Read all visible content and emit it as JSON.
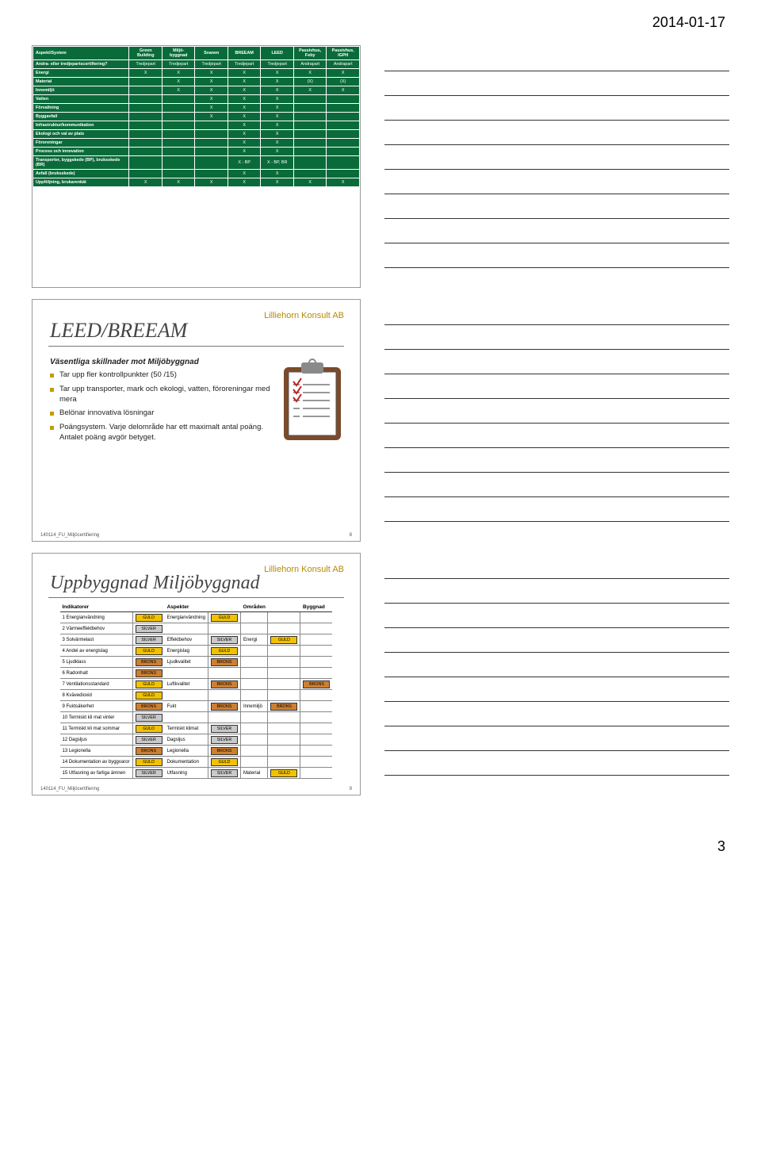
{
  "header_date": "2014-01-17",
  "footer_page": "3",
  "brand": "Lilliehorn Konsult AB",
  "slide_footer_left": "140114_FU_Miljöcertifiering",
  "slide2_num": "8",
  "slide3_num": "9",
  "green_table": {
    "columns": [
      "Aspekt/System",
      "Green Building",
      "Miljö-byggnad",
      "Svanen",
      "BREEAM",
      "LEED",
      "Passivhus, Feby",
      "Passivhus, IGPH"
    ],
    "rows": [
      [
        "Andra- eller tredjepartscertifiering?",
        "Tredjepart",
        "Tredjepart",
        "Tredjepart",
        "Tredjepart",
        "Tredjepart",
        "Andrapart",
        "Andrapart"
      ],
      [
        "Energi",
        "X",
        "X",
        "X",
        "X",
        "X",
        "X",
        "X"
      ],
      [
        "Material",
        "",
        "X",
        "X",
        "X",
        "X",
        "(X)",
        "(X)"
      ],
      [
        "Innemiljö",
        "",
        "X",
        "X",
        "X",
        "X",
        "X",
        "X"
      ],
      [
        "Vatten",
        "",
        "",
        "X",
        "X",
        "X",
        "",
        ""
      ],
      [
        "Förvaltning",
        "",
        "",
        "X",
        "X",
        "X",
        "",
        ""
      ],
      [
        "Byggavfall",
        "",
        "",
        "X",
        "X",
        "X",
        "",
        ""
      ],
      [
        "Infrastruktur/kommunikation",
        "",
        "",
        "",
        "X",
        "X",
        "",
        ""
      ],
      [
        "Ekologi och val av plats",
        "",
        "",
        "",
        "X",
        "X",
        "",
        ""
      ],
      [
        "Föroreningar",
        "",
        "",
        "",
        "X",
        "X",
        "",
        ""
      ],
      [
        "Process och innovation",
        "",
        "",
        "",
        "X",
        "X",
        "",
        ""
      ],
      [
        "Transporter, byggskede (BP), bruksskede (BR)",
        "",
        "",
        "",
        "X - BP",
        "X - BP, BR",
        "",
        ""
      ],
      [
        "Avfall (bruksskede)",
        "",
        "",
        "",
        "X",
        "X",
        "",
        ""
      ],
      [
        "Uppföljning, brukarenkät",
        "X",
        "X",
        "X",
        "X",
        "X",
        "X",
        "X"
      ]
    ]
  },
  "slide2": {
    "title": "LEED/BREEAM",
    "subtitle": "Väsentliga skillnader mot Miljöbyggnad",
    "bullets": [
      "Tar upp fler kontrollpunkter (50 /15)",
      "Tar upp transporter, mark och ekologi, vatten, föroreningar med mera",
      "Belönar innovativa lösningar",
      "Poängsystem. Varje delområde har ett maximalt antal poäng. Antalet poäng avgör betyget."
    ],
    "clip_colors": {
      "clip": "#8a8a8a",
      "board": "#7a4a2a",
      "paper": "#ffffff",
      "check": "#c02020"
    }
  },
  "slide3": {
    "title": "Uppbyggnad Miljöbyggnad",
    "headers": [
      "Indikatorer",
      "",
      "Aspekter",
      "",
      "Områden",
      "",
      "Byggnad"
    ],
    "rows": [
      {
        "n": "1 Energianvändning",
        "b1": "GULD",
        "asp": "Energianvändning",
        "b2": "GULD",
        "omr": "",
        "b3": "",
        "byg": ""
      },
      {
        "n": "2 Värmeeffektbehov",
        "b1": "SILVER",
        "asp": "",
        "b2": "",
        "omr": "",
        "b3": "",
        "byg": ""
      },
      {
        "n": "3 Solvärmelast",
        "b1": "SILVER",
        "asp": "Effektbehov",
        "b2": "SILVER",
        "omr": "Energi",
        "b3": "GULD",
        "byg": ""
      },
      {
        "n": "4 Andel av energislag",
        "b1": "GULD",
        "asp": "Energislag",
        "b2": "GULD",
        "omr": "",
        "b3": "",
        "byg": ""
      },
      {
        "n": "5 Ljudklass",
        "b1": "BRONS",
        "asp": "Ljudkvalitet",
        "b2": "BRONS",
        "omr": "",
        "b3": "",
        "byg": ""
      },
      {
        "n": "6 Radonhalt",
        "b1": "BRONS",
        "asp": "",
        "b2": "",
        "omr": "",
        "b3": "",
        "byg": ""
      },
      {
        "n": "7 Ventilationsstandard",
        "b1": "GULD",
        "asp": "Luftkvalitet",
        "b2": "BRONS",
        "omr": "",
        "b3": "",
        "byg": "BRONS"
      },
      {
        "n": "8 Kvävedioxid",
        "b1": "GULD",
        "asp": "",
        "b2": "",
        "omr": "",
        "b3": "",
        "byg": ""
      },
      {
        "n": "9 Fuktsäkerhet",
        "b1": "BRONS",
        "asp": "Fukt",
        "b2": "BRONS",
        "omr": "Innemiljö",
        "b3": "BRONS",
        "byg": ""
      },
      {
        "n": "10 Termiskt kli mat vinter",
        "b1": "SILVER",
        "asp": "",
        "b2": "",
        "omr": "",
        "b3": "",
        "byg": ""
      },
      {
        "n": "11 Termiskt kli mat sommar",
        "b1": "GULD",
        "asp": "Termiskt klimat",
        "b2": "SILVER",
        "omr": "",
        "b3": "",
        "byg": ""
      },
      {
        "n": "12 Dagsljus",
        "b1": "SILVER",
        "asp": "Dagsljus",
        "b2": "SILVER",
        "omr": "",
        "b3": "",
        "byg": ""
      },
      {
        "n": "13 Legionella",
        "b1": "BRONS",
        "asp": "Legionella",
        "b2": "BRONS",
        "omr": "",
        "b3": "",
        "byg": ""
      },
      {
        "n": "14 Dokumentation av byggvaror",
        "b1": "GULD",
        "asp": "Dokumentation",
        "b2": "GULD",
        "omr": "",
        "b3": "",
        "byg": ""
      },
      {
        "n": "15 Utfasning av farliga ämnen",
        "b1": "SILVER",
        "asp": "Utfasning",
        "b2": "SILVER",
        "omr": "Material",
        "b3": "GULD",
        "byg": ""
      }
    ]
  }
}
